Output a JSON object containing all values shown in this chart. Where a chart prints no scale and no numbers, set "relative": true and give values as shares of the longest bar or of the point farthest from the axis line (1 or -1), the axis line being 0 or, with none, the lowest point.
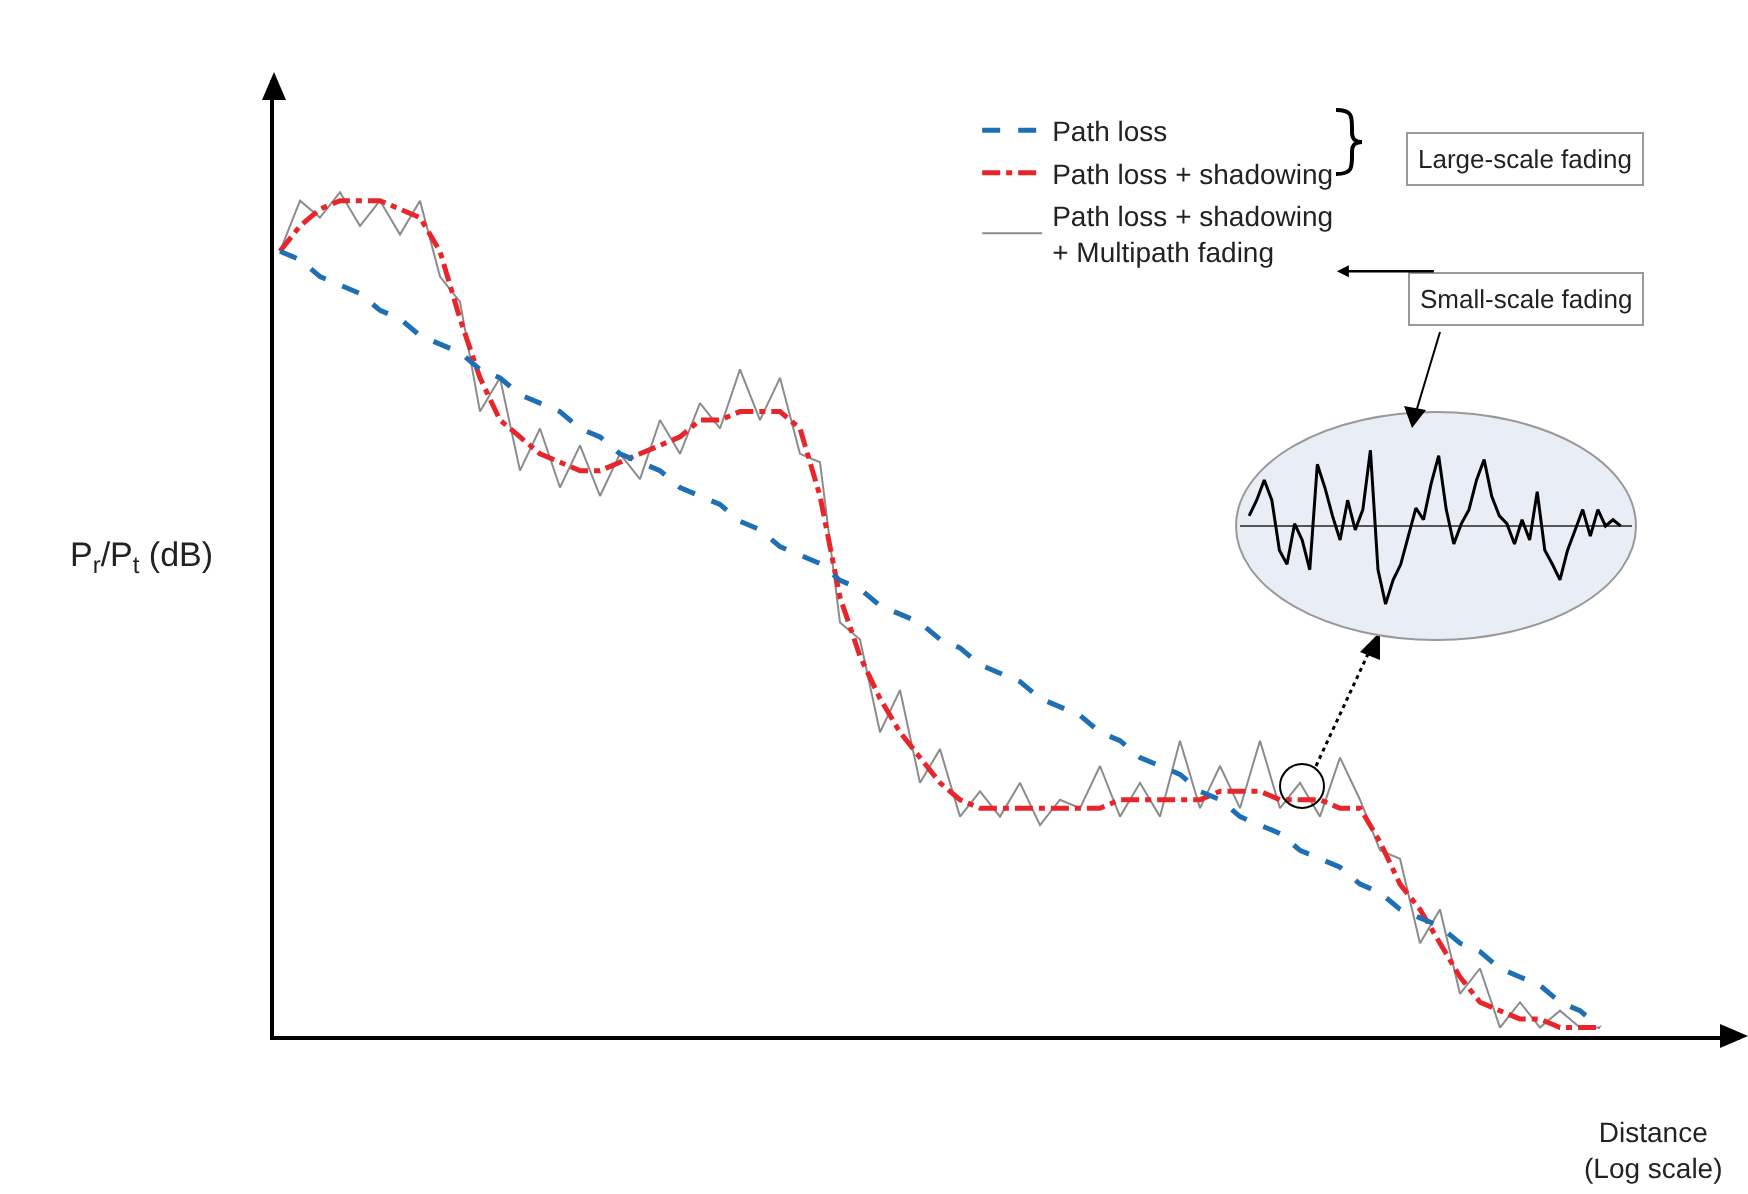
{
  "chart_data": [
    {
      "type": "line",
      "relative": true,
      "xlabel": "Distance (Log scale)",
      "ylabel": "P$_{r}$/P$_{t}$ (dB)",
      "categories": [
        null,
        null,
        null,
        null,
        null,
        null,
        null,
        null,
        null,
        null,
        null,
        null,
        null,
        null,
        null,
        null,
        null,
        null,
        null,
        null,
        null,
        null,
        null,
        null,
        null,
        null,
        null,
        null,
        null,
        null,
        null,
        null,
        null,
        null,
        null,
        null,
        null,
        null,
        null,
        null,
        null,
        null,
        null,
        null,
        null,
        null,
        null,
        null,
        null,
        null,
        null,
        null,
        null,
        null,
        null,
        null,
        null,
        null,
        null,
        null,
        null,
        null,
        null,
        null,
        null,
        null,
        null
      ],
      "series": [
        {
          "name": "Path loss",
          "color": "#1f6fb4",
          "line_style": "dashed",
          "values": [
            0.93,
            0.92,
            0.9,
            0.89,
            0.88,
            0.86,
            0.85,
            0.83,
            0.82,
            0.81,
            0.79,
            0.78,
            0.76,
            0.75,
            0.74,
            0.72,
            0.71,
            0.69,
            0.68,
            0.67,
            0.65,
            0.64,
            0.63,
            0.61,
            0.6,
            0.58,
            0.57,
            0.56,
            0.54,
            0.53,
            0.51,
            0.5,
            0.49,
            0.47,
            0.46,
            0.44,
            0.43,
            0.42,
            0.4,
            0.39,
            0.38,
            0.36,
            0.35,
            0.33,
            0.32,
            0.31,
            0.29,
            0.28,
            0.26,
            0.25,
            0.24,
            0.22,
            0.21,
            0.2,
            0.18,
            0.17,
            0.15,
            0.14,
            0.13,
            0.11,
            0.1,
            0.08,
            0.07,
            0.06,
            0.04,
            0.03,
            0.01
          ]
        },
        {
          "name": "Path loss + shadowing",
          "color": "#e8252b",
          "line_style": "dashdot",
          "values": [
            0.93,
            0.96,
            0.98,
            0.99,
            0.99,
            0.99,
            0.98,
            0.97,
            0.93,
            0.85,
            0.78,
            0.73,
            0.71,
            0.69,
            0.68,
            0.67,
            0.67,
            0.68,
            0.69,
            0.7,
            0.71,
            0.73,
            0.73,
            0.74,
            0.74,
            0.74,
            0.72,
            0.64,
            0.52,
            0.45,
            0.4,
            0.36,
            0.33,
            0.3,
            0.28,
            0.27,
            0.27,
            0.27,
            0.27,
            0.27,
            0.27,
            0.27,
            0.28,
            0.28,
            0.28,
            0.28,
            0.28,
            0.29,
            0.29,
            0.29,
            0.28,
            0.28,
            0.28,
            0.27,
            0.27,
            0.23,
            0.18,
            0.15,
            0.11,
            0.07,
            0.04,
            0.03,
            0.02,
            0.02,
            0.01,
            0.01,
            0.01
          ]
        },
        {
          "name": "Path loss + shadowing + Multipath fading",
          "color": "#8c8c8c",
          "line_style": "solid",
          "values": [
            0.93,
            0.99,
            0.97,
            1.0,
            0.96,
            0.99,
            0.95,
            0.99,
            0.9,
            0.87,
            0.74,
            0.78,
            0.67,
            0.72,
            0.65,
            0.7,
            0.64,
            0.69,
            0.66,
            0.73,
            0.69,
            0.75,
            0.72,
            0.79,
            0.73,
            0.78,
            0.69,
            0.68,
            0.49,
            0.47,
            0.36,
            0.41,
            0.3,
            0.34,
            0.26,
            0.29,
            0.26,
            0.3,
            0.25,
            0.28,
            0.27,
            0.32,
            0.26,
            0.3,
            0.26,
            0.35,
            0.27,
            0.32,
            0.27,
            0.35,
            0.27,
            0.3,
            0.26,
            0.33,
            0.28,
            0.22,
            0.21,
            0.11,
            0.15,
            0.05,
            0.08,
            0.01,
            0.04,
            0.01,
            0.03,
            0.01,
            0.01
          ]
        }
      ],
      "legend": "top right",
      "tick_labels": false,
      "marker": "none",
      "annotations": [
        "Large-scale fading",
        "Small-scale fading"
      ]
    },
    {
      "type": "line",
      "relative": true,
      "tick_labels": false,
      "marker": "none",
      "categories": [
        null,
        null,
        null,
        null,
        null,
        null,
        null,
        null,
        null,
        null,
        null,
        null,
        null,
        null,
        null,
        null,
        null,
        null,
        null,
        null,
        null,
        null,
        null,
        null,
        null,
        null,
        null,
        null,
        null,
        null,
        null,
        null,
        null,
        null,
        null,
        null,
        null,
        null,
        null,
        null,
        null,
        null,
        null,
        null,
        null,
        null,
        null,
        null,
        null,
        null
      ],
      "series": [
        {
          "color": "#000000",
          "line_style": "solid",
          "values": [
            0.13,
            0.33,
            0.59,
            0.33,
            -0.31,
            -0.49,
            0.03,
            -0.18,
            -0.56,
            0.79,
            0.49,
            0.13,
            -0.18,
            0.33,
            -0.05,
            0.21,
            0.97,
            -0.56,
            -1.0,
            -0.69,
            -0.49,
            -0.13,
            0.23,
            0.08,
            0.54,
            0.9,
            0.21,
            -0.23,
            0.03,
            0.21,
            0.59,
            0.85,
            0.38,
            0.13,
            0.03,
            -0.23,
            0.08,
            -0.18,
            0.44,
            -0.31,
            -0.49,
            -0.69,
            -0.31,
            -0.05,
            0.21,
            -0.13,
            0.21,
            0,
            0.08,
            0
          ]
        }
      ]
    }
  ]
}
